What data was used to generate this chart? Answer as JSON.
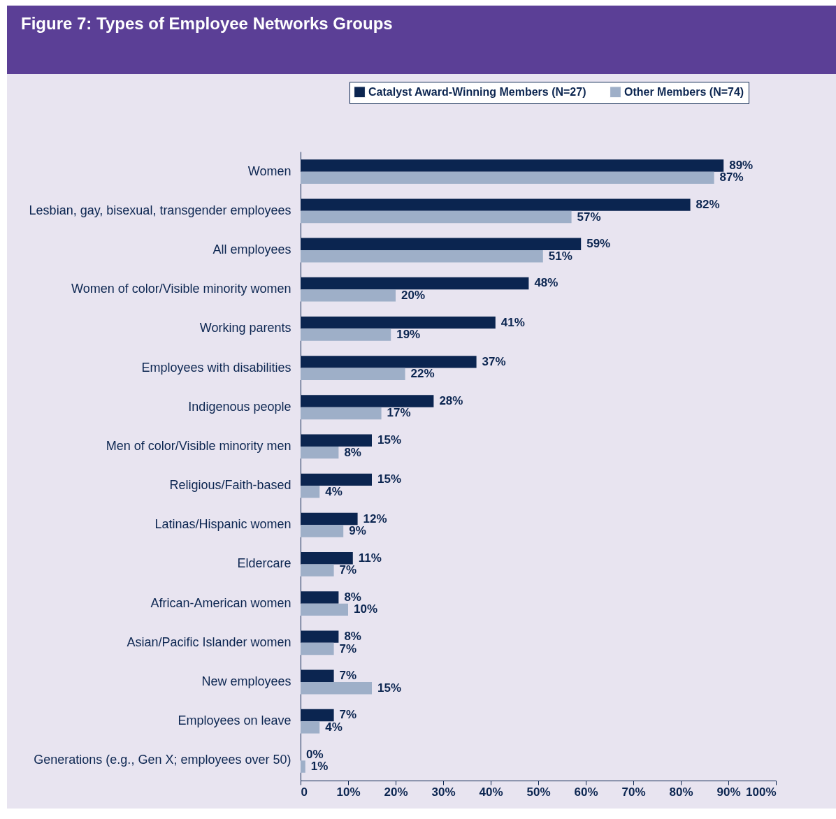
{
  "chart_data": {
    "type": "bar",
    "orientation": "horizontal",
    "title": "Figure 7: Types of Employee Networks Groups",
    "categories": [
      "Women",
      "Lesbian, gay, bisexual, transgender employees",
      "All employees",
      "Women of color/Visible minority women",
      "Working parents",
      "Employees with disabilities",
      "Indigenous people",
      "Men of color/Visible minority men",
      "Religious/Faith-based",
      "Latinas/Hispanic women",
      "Eldercare",
      "African-American women",
      "Asian/Pacific Islander women",
      "New employees",
      "Employees on leave",
      "Generations (e.g., Gen X; employees over 50)"
    ],
    "series": [
      {
        "name": "Catalyst Award-Winning Members (N=27)",
        "color": "#0b2550",
        "values": [
          89,
          82,
          59,
          48,
          41,
          37,
          28,
          15,
          15,
          12,
          11,
          8,
          8,
          7,
          7,
          0
        ],
        "value_labels": [
          "89%",
          "82%",
          "59%",
          "48%",
          "41%",
          "37%",
          "28%",
          "15%",
          "15%",
          "12%",
          "11%",
          "8%",
          "8%",
          "7%",
          "7%",
          "0%"
        ]
      },
      {
        "name": "Other Members (N=74)",
        "color": "#9eafc8",
        "values": [
          87,
          57,
          51,
          20,
          19,
          22,
          17,
          8,
          4,
          9,
          7,
          10,
          7,
          15,
          4,
          1
        ],
        "value_labels": [
          "87%",
          "57%",
          "51%",
          "20%",
          "19%",
          "22%",
          "17%",
          "8%",
          "4%",
          "9%",
          "7%",
          "10%",
          "7%",
          "15%",
          "4%",
          "1%"
        ]
      }
    ],
    "xlim": [
      0,
      100
    ],
    "xticks": [
      {
        "value": 0,
        "label": "0"
      },
      {
        "value": 10,
        "label": "10%"
      },
      {
        "value": 20,
        "label": "20%"
      },
      {
        "value": 30,
        "label": "30%"
      },
      {
        "value": 40,
        "label": "40%"
      },
      {
        "value": 50,
        "label": "50%"
      },
      {
        "value": 60,
        "label": "60%"
      },
      {
        "value": 70,
        "label": "70%"
      },
      {
        "value": 80,
        "label": "80%"
      },
      {
        "value": 90,
        "label": "90%"
      },
      {
        "value": 100,
        "label": "100%"
      }
    ],
    "grid": false,
    "legend": "top right"
  }
}
